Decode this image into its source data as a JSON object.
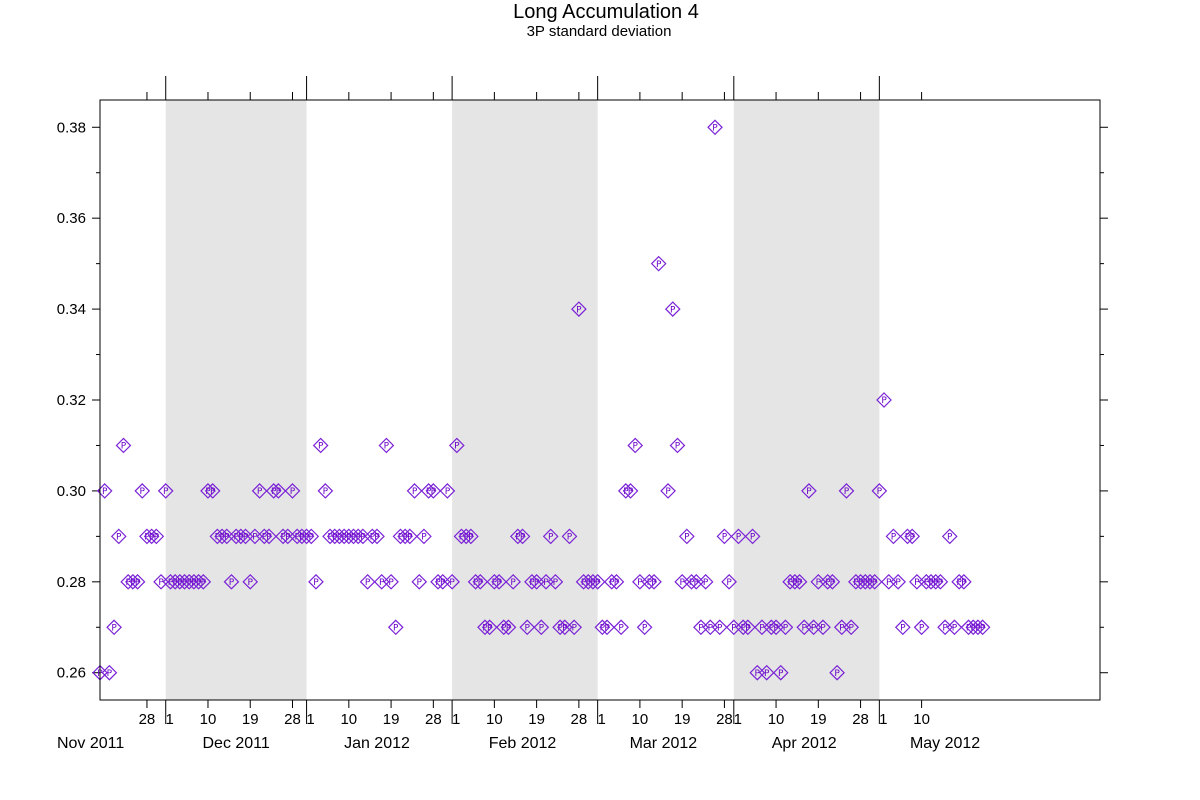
{
  "colors": {
    "marker": "#7a22d6",
    "shade": "#e5e5e5",
    "axis": "#000000"
  },
  "chart_data": {
    "type": "scatter",
    "title": "Long Accumulation 4",
    "subtitle": "3P standard deviation",
    "xlabel": "",
    "ylabel": "",
    "x_type": "date",
    "xlim": [
      "2011-10-18",
      "2012-05-18"
    ],
    "ylim": [
      0.254,
      0.386
    ],
    "y_ticks": [
      0.26,
      0.28,
      0.3,
      0.32,
      0.34,
      0.36,
      0.38
    ],
    "y_tick_labels": [
      "0.26",
      "0.28",
      "0.30",
      "0.32",
      "0.34",
      "0.36",
      "0.38"
    ],
    "grid": false,
    "legend": "none",
    "marker_label": "P",
    "shaded_months": [
      [
        "2011-11-01",
        "2011-12-01"
      ],
      [
        "2012-01-01",
        "2012-02-01"
      ],
      [
        "2012-03-01",
        "2012-04-01"
      ]
    ],
    "x_ticks": [
      {
        "date": "2011-10-28",
        "label": "28"
      },
      {
        "date": "2011-11-01",
        "label": "1"
      },
      {
        "date": "2011-11-10",
        "label": "10"
      },
      {
        "date": "2011-11-19",
        "label": "19"
      },
      {
        "date": "2011-11-28",
        "label": "28"
      },
      {
        "date": "2011-12-01",
        "label": "1"
      },
      {
        "date": "2011-12-10",
        "label": "10"
      },
      {
        "date": "2011-12-19",
        "label": "19"
      },
      {
        "date": "2011-12-28",
        "label": "28"
      },
      {
        "date": "2012-01-01",
        "label": "1"
      },
      {
        "date": "2012-01-10",
        "label": "10"
      },
      {
        "date": "2012-01-19",
        "label": "19"
      },
      {
        "date": "2012-01-28",
        "label": "28"
      },
      {
        "date": "2012-02-01",
        "label": "1"
      },
      {
        "date": "2012-02-10",
        "label": "10"
      },
      {
        "date": "2012-02-19",
        "label": "19"
      },
      {
        "date": "2012-02-28",
        "label": "28"
      },
      {
        "date": "2012-03-01",
        "label": "1"
      },
      {
        "date": "2012-03-10",
        "label": "10"
      },
      {
        "date": "2012-03-19",
        "label": "19"
      },
      {
        "date": "2012-03-28",
        "label": "28"
      },
      {
        "date": "2012-04-01",
        "label": "1"
      },
      {
        "date": "2012-04-10",
        "label": "10"
      }
    ],
    "month_labels": [
      {
        "date": "2011-10-16",
        "label": "Nov 2011"
      },
      {
        "date": "2011-11-16",
        "label": "Dec 2011"
      },
      {
        "date": "2011-12-16",
        "label": "Jan 2012"
      },
      {
        "date": "2012-01-16",
        "label": "Feb 2012"
      },
      {
        "date": "2012-02-15",
        "label": "Mar 2012"
      },
      {
        "date": "2012-03-16",
        "label": "Apr 2012"
      },
      {
        "date": "2012-04-15",
        "label": "May 2012"
      }
    ],
    "points": [
      [
        "2011-10-18",
        0.26
      ],
      [
        "2011-10-19",
        0.3
      ],
      [
        "2011-10-20",
        0.26
      ],
      [
        "2011-10-21",
        0.27
      ],
      [
        "2011-10-22",
        0.29
      ],
      [
        "2011-10-23",
        0.31
      ],
      [
        "2011-10-24",
        0.28
      ],
      [
        "2011-10-25",
        0.28
      ],
      [
        "2011-10-26",
        0.28
      ],
      [
        "2011-10-27",
        0.3
      ],
      [
        "2011-10-28",
        0.29
      ],
      [
        "2011-10-29",
        0.29
      ],
      [
        "2011-10-30",
        0.29
      ],
      [
        "2011-10-31",
        0.28
      ],
      [
        "2011-11-01",
        0.3
      ],
      [
        "2011-11-02",
        0.28
      ],
      [
        "2011-11-03",
        0.28
      ],
      [
        "2011-11-04",
        0.28
      ],
      [
        "2011-11-05",
        0.28
      ],
      [
        "2011-11-06",
        0.28
      ],
      [
        "2011-11-07",
        0.28
      ],
      [
        "2011-11-08",
        0.28
      ],
      [
        "2011-11-09",
        0.28
      ],
      [
        "2011-11-10",
        0.3
      ],
      [
        "2011-11-11",
        0.3
      ],
      [
        "2011-11-12",
        0.29
      ],
      [
        "2011-11-13",
        0.29
      ],
      [
        "2011-11-14",
        0.29
      ],
      [
        "2011-11-15",
        0.28
      ],
      [
        "2011-11-16",
        0.29
      ],
      [
        "2011-11-17",
        0.29
      ],
      [
        "2011-11-18",
        0.29
      ],
      [
        "2011-11-19",
        0.28
      ],
      [
        "2011-11-20",
        0.29
      ],
      [
        "2011-11-21",
        0.3
      ],
      [
        "2011-11-22",
        0.29
      ],
      [
        "2011-11-23",
        0.29
      ],
      [
        "2011-11-24",
        0.3
      ],
      [
        "2011-11-25",
        0.3
      ],
      [
        "2011-11-26",
        0.29
      ],
      [
        "2011-11-27",
        0.29
      ],
      [
        "2011-11-28",
        0.3
      ],
      [
        "2011-11-29",
        0.29
      ],
      [
        "2011-11-30",
        0.29
      ],
      [
        "2011-12-01",
        0.29
      ],
      [
        "2011-12-02",
        0.29
      ],
      [
        "2011-12-03",
        0.28
      ],
      [
        "2011-12-04",
        0.31
      ],
      [
        "2011-12-05",
        0.3
      ],
      [
        "2011-12-06",
        0.29
      ],
      [
        "2011-12-07",
        0.29
      ],
      [
        "2011-12-08",
        0.29
      ],
      [
        "2011-12-09",
        0.29
      ],
      [
        "2011-12-10",
        0.29
      ],
      [
        "2011-12-11",
        0.29
      ],
      [
        "2011-12-12",
        0.29
      ],
      [
        "2011-12-13",
        0.29
      ],
      [
        "2011-12-14",
        0.28
      ],
      [
        "2011-12-15",
        0.29
      ],
      [
        "2011-12-16",
        0.29
      ],
      [
        "2011-12-17",
        0.28
      ],
      [
        "2011-12-18",
        0.31
      ],
      [
        "2011-12-19",
        0.28
      ],
      [
        "2011-12-20",
        0.27
      ],
      [
        "2011-12-21",
        0.29
      ],
      [
        "2011-12-22",
        0.29
      ],
      [
        "2011-12-23",
        0.29
      ],
      [
        "2011-12-24",
        0.3
      ],
      [
        "2011-12-25",
        0.28
      ],
      [
        "2011-12-26",
        0.29
      ],
      [
        "2011-12-27",
        0.3
      ],
      [
        "2011-12-28",
        0.3
      ],
      [
        "2011-12-29",
        0.28
      ],
      [
        "2011-12-30",
        0.28
      ],
      [
        "2011-12-31",
        0.3
      ],
      [
        "2012-01-01",
        0.28
      ],
      [
        "2012-01-02",
        0.31
      ],
      [
        "2012-01-03",
        0.29
      ],
      [
        "2012-01-04",
        0.29
      ],
      [
        "2012-01-05",
        0.29
      ],
      [
        "2012-01-06",
        0.28
      ],
      [
        "2012-01-07",
        0.28
      ],
      [
        "2012-01-08",
        0.27
      ],
      [
        "2012-01-09",
        0.27
      ],
      [
        "2012-01-10",
        0.28
      ],
      [
        "2012-01-11",
        0.28
      ],
      [
        "2012-01-12",
        0.27
      ],
      [
        "2012-01-13",
        0.27
      ],
      [
        "2012-01-14",
        0.28
      ],
      [
        "2012-01-15",
        0.29
      ],
      [
        "2012-01-16",
        0.29
      ],
      [
        "2012-01-17",
        0.27
      ],
      [
        "2012-01-18",
        0.28
      ],
      [
        "2012-01-19",
        0.28
      ],
      [
        "2012-01-20",
        0.27
      ],
      [
        "2012-01-21",
        0.28
      ],
      [
        "2012-01-22",
        0.29
      ],
      [
        "2012-01-23",
        0.28
      ],
      [
        "2012-01-24",
        0.27
      ],
      [
        "2012-01-25",
        0.27
      ],
      [
        "2012-01-26",
        0.29
      ],
      [
        "2012-01-27",
        0.27
      ],
      [
        "2012-01-28",
        0.34
      ],
      [
        "2012-01-29",
        0.28
      ],
      [
        "2012-01-30",
        0.28
      ],
      [
        "2012-01-31",
        0.28
      ],
      [
        "2012-02-01",
        0.28
      ],
      [
        "2012-02-02",
        0.27
      ],
      [
        "2012-02-03",
        0.27
      ],
      [
        "2012-02-04",
        0.28
      ],
      [
        "2012-02-05",
        0.28
      ],
      [
        "2012-02-06",
        0.27
      ],
      [
        "2012-02-07",
        0.3
      ],
      [
        "2012-02-08",
        0.3
      ],
      [
        "2012-02-09",
        0.31
      ],
      [
        "2012-02-10",
        0.28
      ],
      [
        "2012-02-11",
        0.27
      ],
      [
        "2012-02-12",
        0.28
      ],
      [
        "2012-02-13",
        0.28
      ],
      [
        "2012-02-14",
        0.35
      ],
      [
        "2012-02-16",
        0.3
      ],
      [
        "2012-02-17",
        0.34
      ],
      [
        "2012-02-18",
        0.31
      ],
      [
        "2012-02-19",
        0.28
      ],
      [
        "2012-02-20",
        0.29
      ],
      [
        "2012-02-21",
        0.28
      ],
      [
        "2012-02-22",
        0.28
      ],
      [
        "2012-02-23",
        0.27
      ],
      [
        "2012-02-24",
        0.28
      ],
      [
        "2012-02-25",
        0.27
      ],
      [
        "2012-02-26",
        0.38
      ],
      [
        "2012-02-27",
        0.27
      ],
      [
        "2012-02-28",
        0.29
      ],
      [
        "2012-02-29",
        0.28
      ],
      [
        "2012-03-01",
        0.27
      ],
      [
        "2012-03-02",
        0.29
      ],
      [
        "2012-03-03",
        0.27
      ],
      [
        "2012-03-04",
        0.27
      ],
      [
        "2012-03-05",
        0.29
      ],
      [
        "2012-03-06",
        0.26
      ],
      [
        "2012-03-07",
        0.27
      ],
      [
        "2012-03-08",
        0.26
      ],
      [
        "2012-03-09",
        0.27
      ],
      [
        "2012-03-10",
        0.27
      ],
      [
        "2012-03-11",
        0.26
      ],
      [
        "2012-03-12",
        0.27
      ],
      [
        "2012-03-13",
        0.28
      ],
      [
        "2012-03-14",
        0.28
      ],
      [
        "2012-03-15",
        0.28
      ],
      [
        "2012-03-16",
        0.27
      ],
      [
        "2012-03-17",
        0.3
      ],
      [
        "2012-03-18",
        0.27
      ],
      [
        "2012-03-19",
        0.28
      ],
      [
        "2012-03-20",
        0.27
      ],
      [
        "2012-03-21",
        0.28
      ],
      [
        "2012-03-22",
        0.28
      ],
      [
        "2012-03-23",
        0.26
      ],
      [
        "2012-03-24",
        0.27
      ],
      [
        "2012-03-25",
        0.3
      ],
      [
        "2012-03-26",
        0.27
      ],
      [
        "2012-03-27",
        0.28
      ],
      [
        "2012-03-28",
        0.28
      ],
      [
        "2012-03-29",
        0.28
      ],
      [
        "2012-03-30",
        0.28
      ],
      [
        "2012-03-31",
        0.28
      ],
      [
        "2012-04-01",
        0.3
      ],
      [
        "2012-04-02",
        0.32
      ],
      [
        "2012-04-03",
        0.28
      ],
      [
        "2012-04-04",
        0.29
      ],
      [
        "2012-04-05",
        0.28
      ],
      [
        "2012-04-06",
        0.27
      ],
      [
        "2012-04-07",
        0.29
      ],
      [
        "2012-04-08",
        0.29
      ],
      [
        "2012-04-09",
        0.28
      ],
      [
        "2012-04-10",
        0.27
      ],
      [
        "2012-04-11",
        0.28
      ],
      [
        "2012-04-12",
        0.28
      ],
      [
        "2012-04-13",
        0.28
      ],
      [
        "2012-04-14",
        0.28
      ],
      [
        "2012-04-15",
        0.27
      ],
      [
        "2012-04-16",
        0.29
      ],
      [
        "2012-04-17",
        0.27
      ],
      [
        "2012-04-18",
        0.28
      ],
      [
        "2012-04-19",
        0.28
      ],
      [
        "2012-04-20",
        0.27
      ],
      [
        "2012-04-21",
        0.27
      ],
      [
        "2012-04-22",
        0.27
      ],
      [
        "2012-04-23",
        0.27
      ]
    ]
  }
}
